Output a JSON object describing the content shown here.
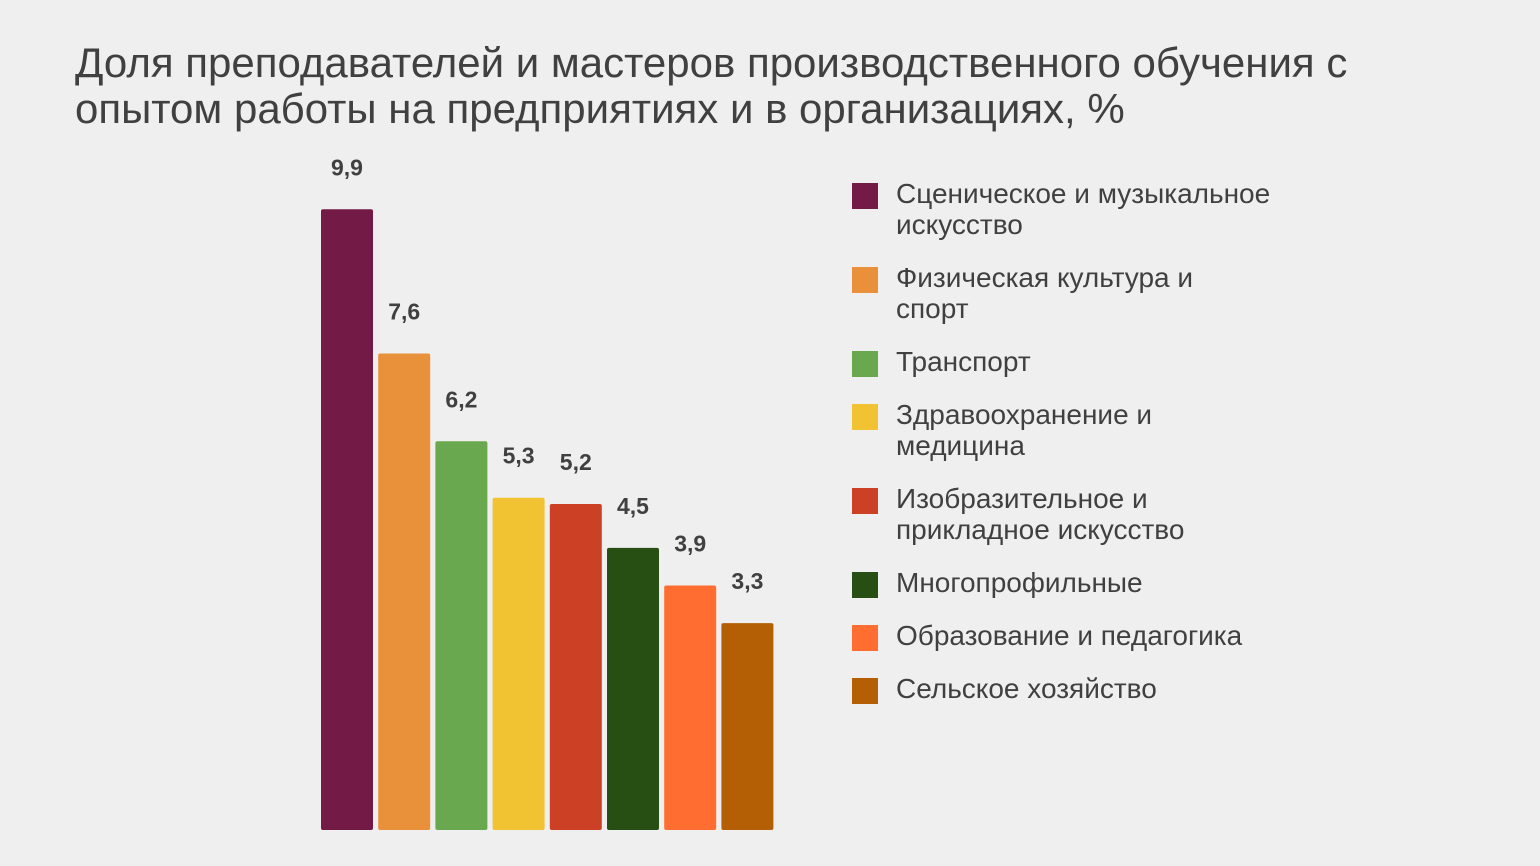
{
  "chart_data": {
    "type": "bar",
    "title": "Доля преподавателей и мастеров производственного обучения с опытом работы на предприятиях и в организациях, %",
    "categories": [
      "Сценическое и музыкальное искусство",
      "Физическая культура и спорт",
      "Транспорт",
      "Здравоохранение и медицина",
      "Изобразительное и прикладное искусство",
      "Многопрофильные",
      "Образование и педагогика",
      "Сельское хозяйство"
    ],
    "values": [
      9.9,
      7.6,
      6.2,
      5.3,
      5.2,
      4.5,
      3.9,
      3.3
    ],
    "value_labels": [
      "9,9",
      "7,6",
      "6,2",
      "5,3",
      "5,2",
      "4,5",
      "3,9",
      "3,3"
    ],
    "colors": [
      "#731a46",
      "#e8913a",
      "#6aa84f",
      "#f1c232",
      "#cc4125",
      "#274e13",
      "#ff6d31",
      "#b45f06"
    ],
    "ylim": [
      0,
      10
    ],
    "grid": false,
    "legend_position": "right",
    "xlabel": "",
    "ylabel": ""
  }
}
